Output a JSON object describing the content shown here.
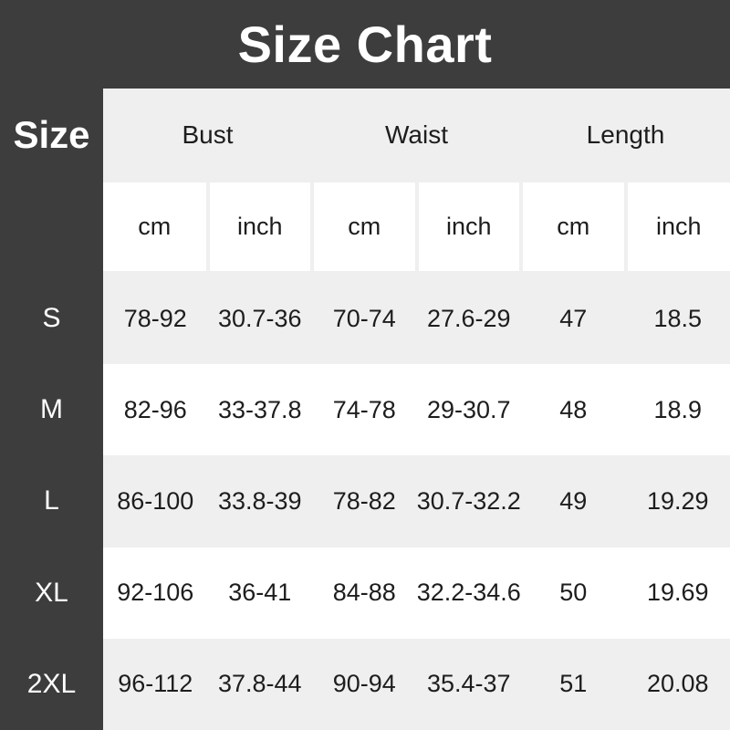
{
  "title": "Size Chart",
  "table": {
    "corner_label": "Size",
    "groups": [
      "Bust",
      "Waist",
      "Length"
    ],
    "units": [
      "cm",
      "inch",
      "cm",
      "inch",
      "cm",
      "inch"
    ],
    "rows": [
      {
        "size": "S",
        "values": [
          "78-92",
          "30.7-36",
          "70-74",
          "27.6-29",
          "47",
          "18.5"
        ]
      },
      {
        "size": "M",
        "values": [
          "82-96",
          "33-37.8",
          "74-78",
          "29-30.7",
          "48",
          "18.9"
        ]
      },
      {
        "size": "L",
        "values": [
          "86-100",
          "33.8-39",
          "78-82",
          "30.7-32.2",
          "49",
          "19.29"
        ]
      },
      {
        "size": "XL",
        "values": [
          "92-106",
          "36-41",
          "84-88",
          "32.2-34.6",
          "50",
          "19.69"
        ]
      },
      {
        "size": "2XL",
        "values": [
          "96-112",
          "37.8-44",
          "90-94",
          "35.4-37",
          "51",
          "20.08"
        ]
      }
    ]
  },
  "colors": {
    "background": "#3d3d3d",
    "table_gray": "#efefef",
    "table_white": "#ffffff",
    "text_dark": "#1d1d1d",
    "text_light": "#ffffff"
  },
  "chart_data": {
    "type": "table",
    "title": "Size Chart",
    "columns": [
      "Size",
      "Bust cm",
      "Bust inch",
      "Waist cm",
      "Waist inch",
      "Length cm",
      "Length inch"
    ],
    "rows": [
      [
        "S",
        "78-92",
        "30.7-36",
        "70-74",
        "27.6-29",
        "47",
        "18.5"
      ],
      [
        "M",
        "82-96",
        "33-37.8",
        "74-78",
        "29-30.7",
        "48",
        "18.9"
      ],
      [
        "L",
        "86-100",
        "33.8-39",
        "78-82",
        "30.7-32.2",
        "49",
        "19.29"
      ],
      [
        "XL",
        "92-106",
        "36-41",
        "84-88",
        "32.2-34.6",
        "50",
        "19.69"
      ],
      [
        "2XL",
        "96-112",
        "37.8-44",
        "90-94",
        "35.4-37",
        "51",
        "20.08"
      ]
    ]
  }
}
